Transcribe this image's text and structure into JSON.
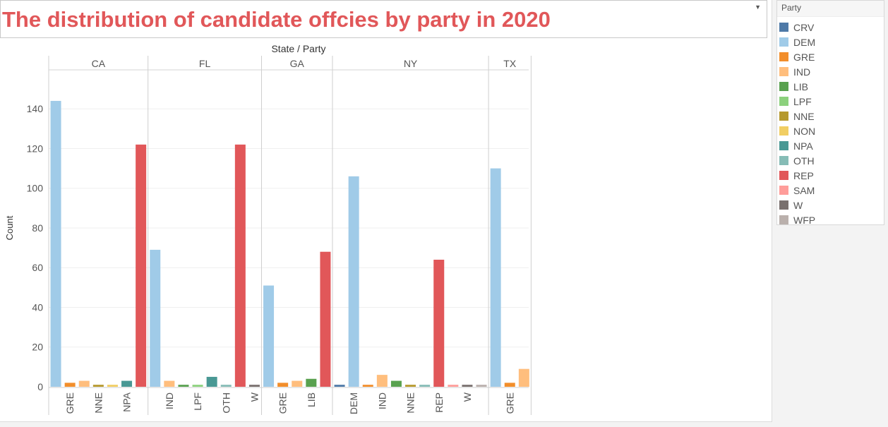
{
  "title": "The distribution of candidate offcies by party in 2020",
  "legend": {
    "title": "Party",
    "items": [
      {
        "label": "CRV",
        "color": "#4e79a7"
      },
      {
        "label": "DEM",
        "color": "#a0cbe8"
      },
      {
        "label": "GRE",
        "color": "#f28e2b"
      },
      {
        "label": "IND",
        "color": "#ffbe7d"
      },
      {
        "label": "LIB",
        "color": "#59a14f"
      },
      {
        "label": "LPF",
        "color": "#8cd17d"
      },
      {
        "label": "NNE",
        "color": "#b6992d"
      },
      {
        "label": "NON",
        "color": "#f1ce63"
      },
      {
        "label": "NPA",
        "color": "#499894"
      },
      {
        "label": "OTH",
        "color": "#86bcb6"
      },
      {
        "label": "REP",
        "color": "#e15759"
      },
      {
        "label": "SAM",
        "color": "#ff9d9a"
      },
      {
        "label": "W",
        "color": "#79706e"
      },
      {
        "label": "WFP",
        "color": "#bab0ac"
      }
    ]
  },
  "chart_data": {
    "type": "bar",
    "top_axis_title": "State / Party",
    "ylabel": "Count",
    "ylim": [
      0,
      155
    ],
    "yticks": [
      0,
      20,
      40,
      60,
      80,
      100,
      120,
      140
    ],
    "grid": true,
    "panels": [
      {
        "state": "CA",
        "bars": [
          {
            "party": "DEM",
            "value": 144,
            "label": ""
          },
          {
            "party": "GRE",
            "value": 2,
            "label": "GRE"
          },
          {
            "party": "IND",
            "value": 3,
            "label": ""
          },
          {
            "party": "NNE",
            "value": 1,
            "label": "NNE"
          },
          {
            "party": "NON",
            "value": 1,
            "label": ""
          },
          {
            "party": "NPA",
            "value": 3,
            "label": "NPA"
          },
          {
            "party": "REP",
            "value": 122,
            "label": ""
          }
        ]
      },
      {
        "state": "FL",
        "bars": [
          {
            "party": "DEM",
            "value": 69,
            "label": ""
          },
          {
            "party": "IND",
            "value": 3,
            "label": "IND"
          },
          {
            "party": "LIB",
            "value": 1,
            "label": ""
          },
          {
            "party": "LPF",
            "value": 1,
            "label": "LPF"
          },
          {
            "party": "NPA",
            "value": 5,
            "label": ""
          },
          {
            "party": "OTH",
            "value": 1,
            "label": "OTH"
          },
          {
            "party": "REP",
            "value": 122,
            "label": ""
          },
          {
            "party": "W",
            "value": 1,
            "label": "W"
          }
        ]
      },
      {
        "state": "GA",
        "bars": [
          {
            "party": "DEM",
            "value": 51,
            "label": ""
          },
          {
            "party": "GRE",
            "value": 2,
            "label": "GRE"
          },
          {
            "party": "IND",
            "value": 3,
            "label": ""
          },
          {
            "party": "LIB",
            "value": 4,
            "label": "LIB"
          },
          {
            "party": "REP",
            "value": 68,
            "label": ""
          }
        ]
      },
      {
        "state": "NY",
        "bars": [
          {
            "party": "CRV",
            "value": 1,
            "label": ""
          },
          {
            "party": "DEM",
            "value": 106,
            "label": "DEM"
          },
          {
            "party": "GRE",
            "value": 1,
            "label": ""
          },
          {
            "party": "IND",
            "value": 6,
            "label": "IND"
          },
          {
            "party": "LIB",
            "value": 3,
            "label": ""
          },
          {
            "party": "NNE",
            "value": 1,
            "label": "NNE"
          },
          {
            "party": "OTH",
            "value": 1,
            "label": ""
          },
          {
            "party": "REP",
            "value": 64,
            "label": "REP"
          },
          {
            "party": "SAM",
            "value": 1,
            "label": ""
          },
          {
            "party": "W",
            "value": 1,
            "label": "W"
          },
          {
            "party": "WFP",
            "value": 1,
            "label": ""
          }
        ]
      },
      {
        "state": "TX",
        "bars": [
          {
            "party": "DEM",
            "value": 110,
            "label": ""
          },
          {
            "party": "GRE",
            "value": 2,
            "label": "GRE"
          },
          {
            "party": "IND",
            "value": 9,
            "label": ""
          }
        ]
      }
    ]
  }
}
